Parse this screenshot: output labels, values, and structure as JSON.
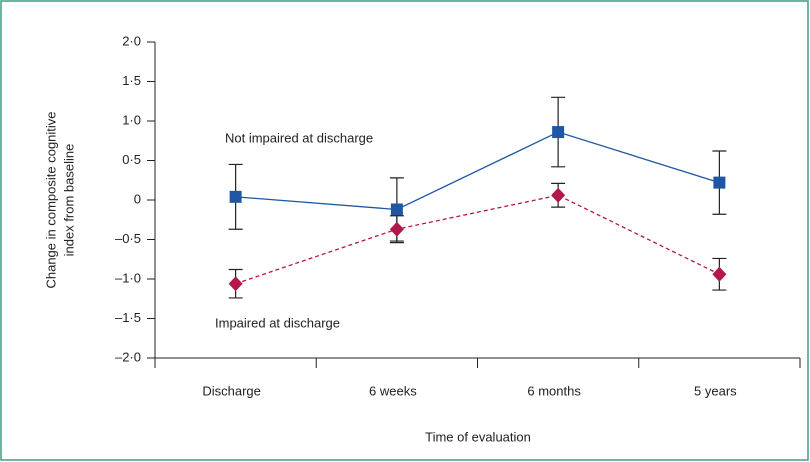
{
  "chart_data": {
    "type": "line",
    "categories": [
      "Discharge",
      "6 weeks",
      "6 months",
      "5 years"
    ],
    "series": [
      {
        "name": "Not impaired at discharge",
        "color": "#1f57a4",
        "marker": "square",
        "dash": false,
        "values": [
          0.04,
          -0.12,
          0.86,
          0.22
        ],
        "errors": [
          0.41,
          0.4,
          0.44,
          0.4
        ]
      },
      {
        "name": "Impaired at discharge",
        "color": "#b3174b",
        "marker": "diamond",
        "dash": true,
        "values": [
          -1.06,
          -0.37,
          0.06,
          -0.94
        ],
        "errors": [
          0.18,
          0.17,
          0.15,
          0.2
        ]
      }
    ],
    "ylim": [
      -2,
      2
    ],
    "yticks": [
      {
        "value": 2,
        "label": "2·0"
      },
      {
        "value": 1.5,
        "label": "1·5"
      },
      {
        "value": 1,
        "label": "1·0"
      },
      {
        "value": 0.5,
        "label": "0·5"
      },
      0,
      {
        "value": -0.5,
        "label": "–0·5"
      },
      {
        "value": -1,
        "label": "–1·0"
      },
      {
        "value": -1.5,
        "label": "–1·5"
      },
      {
        "value": -2,
        "label": "–2·0"
      }
    ],
    "xlabel": "Time of evaluation",
    "ylabel": [
      "Change in composite cognitive",
      "index from baseline"
    ],
    "grid": false
  }
}
